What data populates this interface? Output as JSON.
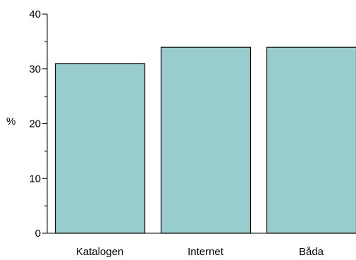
{
  "chart_data": {
    "type": "bar",
    "categories": [
      "Katalogen",
      "Internet",
      "Båda"
    ],
    "values": [
      31,
      34,
      34
    ],
    "xlabel": "",
    "ylabel": "%",
    "ylim": [
      0,
      40
    ],
    "yticks": [
      0,
      10,
      20,
      30,
      40
    ],
    "grid": false,
    "bar_color": "#99cccc",
    "bar_edge_color": "#000000"
  }
}
